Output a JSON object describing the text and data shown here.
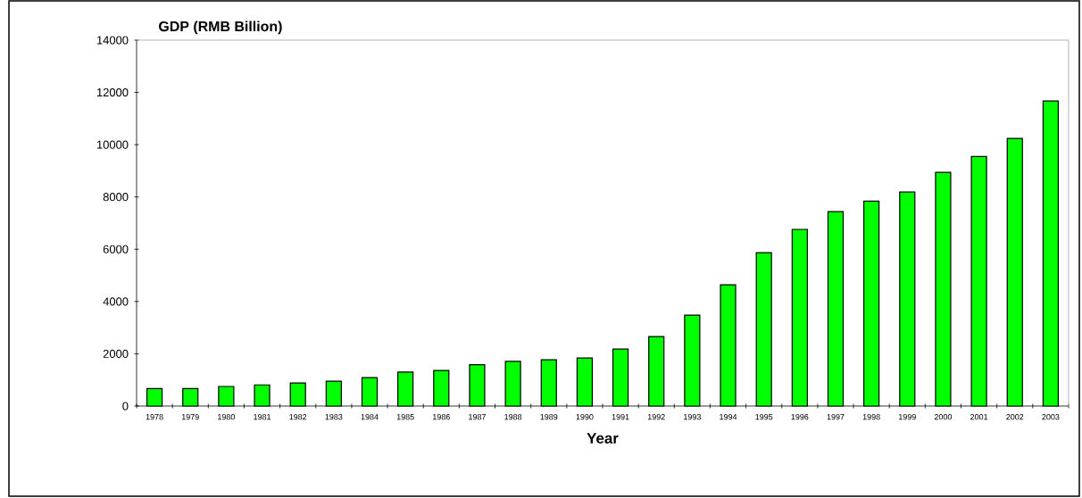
{
  "chart_data": {
    "type": "bar",
    "title": "GDP (RMB Billion)",
    "xlabel": "Year",
    "categories": [
      "1978",
      "1979",
      "1980",
      "1981",
      "1982",
      "1983",
      "1984",
      "1985",
      "1986",
      "1987",
      "1988",
      "1989",
      "1990",
      "1991",
      "1992",
      "1993",
      "1994",
      "1995",
      "1996",
      "1997",
      "1998",
      "1999",
      "2000",
      "2001",
      "2002",
      "2003"
    ],
    "values": [
      670,
      670,
      750,
      810,
      880,
      950,
      1090,
      1300,
      1360,
      1580,
      1710,
      1770,
      1840,
      2180,
      2660,
      3480,
      4640,
      5870,
      6760,
      7440,
      7840,
      8190,
      8940,
      9550,
      10240,
      11670
    ],
    "color": "#00ff00",
    "ylim": [
      0,
      14000
    ],
    "yticks": [
      0,
      2000,
      4000,
      6000,
      8000,
      10000,
      12000,
      14000
    ],
    "grid": false
  }
}
